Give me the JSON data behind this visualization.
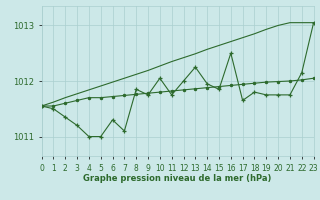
{
  "x": [
    0,
    1,
    2,
    3,
    4,
    5,
    6,
    7,
    8,
    9,
    10,
    11,
    12,
    13,
    14,
    15,
    16,
    17,
    18,
    19,
    20,
    21,
    22,
    23
  ],
  "y_jagged": [
    1011.55,
    1011.5,
    1011.35,
    1011.2,
    1011.0,
    1011.0,
    1011.3,
    1011.1,
    1011.85,
    1011.75,
    1012.05,
    1011.75,
    1012.0,
    1012.25,
    1011.95,
    1011.85,
    1012.5,
    1011.65,
    1011.8,
    1011.75,
    1011.75,
    1011.75,
    1012.15,
    1013.05
  ],
  "y_flat": [
    1011.55,
    1011.55,
    1011.6,
    1011.65,
    1011.7,
    1011.7,
    1011.72,
    1011.74,
    1011.76,
    1011.78,
    1011.8,
    1011.82,
    1011.84,
    1011.86,
    1011.88,
    1011.9,
    1011.92,
    1011.94,
    1011.96,
    1011.98,
    1011.99,
    1012.0,
    1012.02,
    1012.05
  ],
  "y_diagonal": [
    1011.55,
    1011.62,
    1011.7,
    1011.77,
    1011.84,
    1011.91,
    1011.98,
    1012.05,
    1012.12,
    1012.19,
    1012.27,
    1012.35,
    1012.42,
    1012.49,
    1012.57,
    1012.64,
    1012.71,
    1012.78,
    1012.85,
    1012.93,
    1013.0,
    1013.05,
    1013.05,
    1013.05
  ],
  "line_color": "#2d6a2d",
  "bg_color": "#cce8e8",
  "grid_color": "#aacfcf",
  "xlabel": "Graphe pression niveau de la mer (hPa)",
  "ylim": [
    1010.65,
    1013.35
  ],
  "xlim": [
    0,
    23
  ],
  "yticks": [
    1011,
    1012,
    1013
  ],
  "xticks": [
    0,
    1,
    2,
    3,
    4,
    5,
    6,
    7,
    8,
    9,
    10,
    11,
    12,
    13,
    14,
    15,
    16,
    17,
    18,
    19,
    20,
    21,
    22,
    23
  ]
}
